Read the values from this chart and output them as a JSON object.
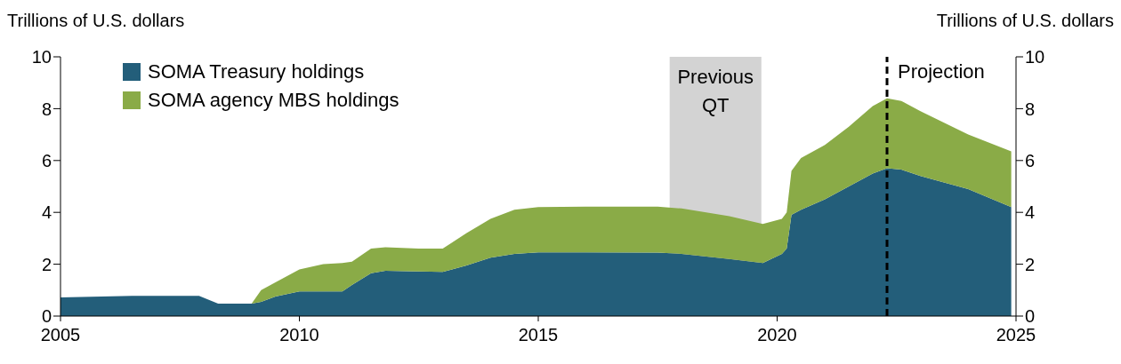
{
  "chart_data": {
    "type": "area",
    "stacked": true,
    "ylabel": "Trillions of U.S. dollars",
    "y2label": "Trillions of U.S. dollars",
    "x": [
      2005,
      2006.5,
      2007.9,
      2008.3,
      2009.0,
      2009.2,
      2009.5,
      2010,
      2010.5,
      2010.9,
      2011.1,
      2011.5,
      2011.8,
      2012.5,
      2013,
      2013.5,
      2014,
      2014.5,
      2015,
      2016,
      2017.5,
      2018,
      2019,
      2019.7,
      2020.1,
      2020.2,
      2020.3,
      2020.5,
      2021,
      2021.5,
      2022,
      2022.3,
      2022.6,
      2023,
      2024,
      2024.9
    ],
    "series": [
      {
        "name": "SOMA Treasury holdings",
        "color": "#235e7a",
        "values": [
          0.72,
          0.78,
          0.78,
          0.48,
          0.48,
          0.55,
          0.75,
          0.95,
          0.95,
          0.95,
          1.2,
          1.65,
          1.75,
          1.72,
          1.7,
          1.95,
          2.25,
          2.4,
          2.46,
          2.46,
          2.45,
          2.4,
          2.2,
          2.05,
          2.4,
          2.6,
          3.9,
          4.1,
          4.5,
          5.0,
          5.5,
          5.7,
          5.65,
          5.4,
          4.9,
          4.2
        ]
      },
      {
        "name": "SOMA agency MBS holdings",
        "color": "#8aab47",
        "values": [
          0,
          0,
          0,
          0,
          0,
          0.45,
          0.55,
          0.85,
          1.05,
          1.1,
          0.9,
          0.95,
          0.9,
          0.88,
          0.9,
          1.25,
          1.5,
          1.7,
          1.74,
          1.76,
          1.77,
          1.75,
          1.65,
          1.5,
          1.35,
          1.4,
          1.7,
          2.0,
          2.1,
          2.3,
          2.6,
          2.7,
          2.65,
          2.5,
          2.1,
          2.15
        ]
      }
    ],
    "xlim": [
      2005,
      2025
    ],
    "xticks": [
      2005,
      2010,
      2015,
      2020,
      2025
    ],
    "ylim": [
      0,
      10
    ],
    "yticks": [
      0,
      2,
      4,
      6,
      8,
      10
    ],
    "y2lim": [
      0,
      10
    ],
    "y2ticks": [
      0,
      2,
      4,
      6,
      8,
      10
    ],
    "bands": [
      {
        "axis": "x",
        "from": 2017.75,
        "to": 2019.67,
        "label": "Previous QT",
        "color": "#d3d3d3"
      }
    ],
    "ref_lines": [
      {
        "axis": "x",
        "value": 2022.3,
        "label": "Projection",
        "color": "#000000",
        "line_style": "dashed"
      }
    ],
    "legend": "top left",
    "grid": false
  }
}
